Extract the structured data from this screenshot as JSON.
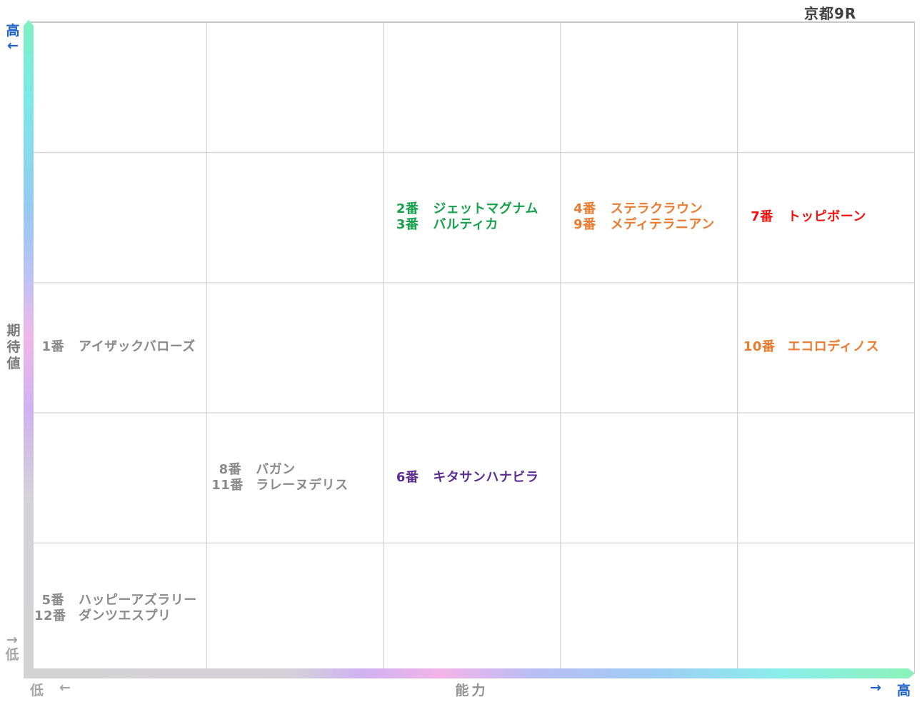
{
  "title": "京都9R",
  "y_axis": {
    "label": "期待値",
    "high_label": "高",
    "high_arrow": "←",
    "low_arrow": "→",
    "low_label": "低"
  },
  "x_axis": {
    "label": "能力",
    "low_label": "低",
    "low_arrow": "←",
    "high_arrow": "→",
    "high_label": "高"
  },
  "colors": {
    "green": "#16a14b",
    "orange": "#e97c30",
    "red": "#ee1414",
    "purple": "#5c2e91",
    "gray": "#8a8a8a",
    "blue_accent": "#1f63c8",
    "axis_gray": "#a6a6a6",
    "grid_line": "#c9c9c9",
    "gradient_low": "#d3d3d3",
    "gradient_mid_pink": "#f3b4e8",
    "gradient_high": "#8cf2b9"
  },
  "chart_data": {
    "type": "scatter",
    "title": "京都9R",
    "xlabel": "能力",
    "ylabel": "期待値",
    "x_direction": {
      "low": "低",
      "high": "高"
    },
    "y_direction": {
      "low": "低",
      "high": "高"
    },
    "grid": {
      "cols": 5,
      "rows": 5,
      "grid_on": true
    },
    "groups": [
      {
        "cell_col": 3,
        "cell_row": 2,
        "color": "green",
        "horses": [
          {
            "num": "2番",
            "name": "ジェットマグナム"
          },
          {
            "num": "3番",
            "name": "バルティカ"
          }
        ]
      },
      {
        "cell_col": 4,
        "cell_row": 2,
        "color": "orange",
        "horses": [
          {
            "num": "4番",
            "name": "ステラクラウン"
          },
          {
            "num": "9番",
            "name": "メディテラニアン"
          }
        ]
      },
      {
        "cell_col": 5,
        "cell_row": 2,
        "color": "red",
        "horses": [
          {
            "num": "7番",
            "name": "トッピボーン"
          }
        ]
      },
      {
        "cell_col": 1,
        "cell_row": 3,
        "color": "gray",
        "horses": [
          {
            "num": "1番",
            "name": "アイザックバローズ"
          }
        ]
      },
      {
        "cell_col": 5,
        "cell_row": 3,
        "color": "orange",
        "horses": [
          {
            "num": "10番",
            "name": "エコロディノス"
          }
        ]
      },
      {
        "cell_col": 2,
        "cell_row": 4,
        "color": "gray",
        "horses": [
          {
            "num": "8番",
            "name": "バガン"
          },
          {
            "num": "11番",
            "name": "ラレーヌデリス"
          }
        ]
      },
      {
        "cell_col": 3,
        "cell_row": 4,
        "color": "purple",
        "horses": [
          {
            "num": "6番",
            "name": "キタサンハナビラ"
          }
        ]
      },
      {
        "cell_col": 1,
        "cell_row": 5,
        "color": "gray",
        "horses": [
          {
            "num": "5番",
            "name": "ハッピーアズラリー"
          },
          {
            "num": "12番",
            "name": "ダンツエスプリ"
          }
        ]
      }
    ]
  }
}
